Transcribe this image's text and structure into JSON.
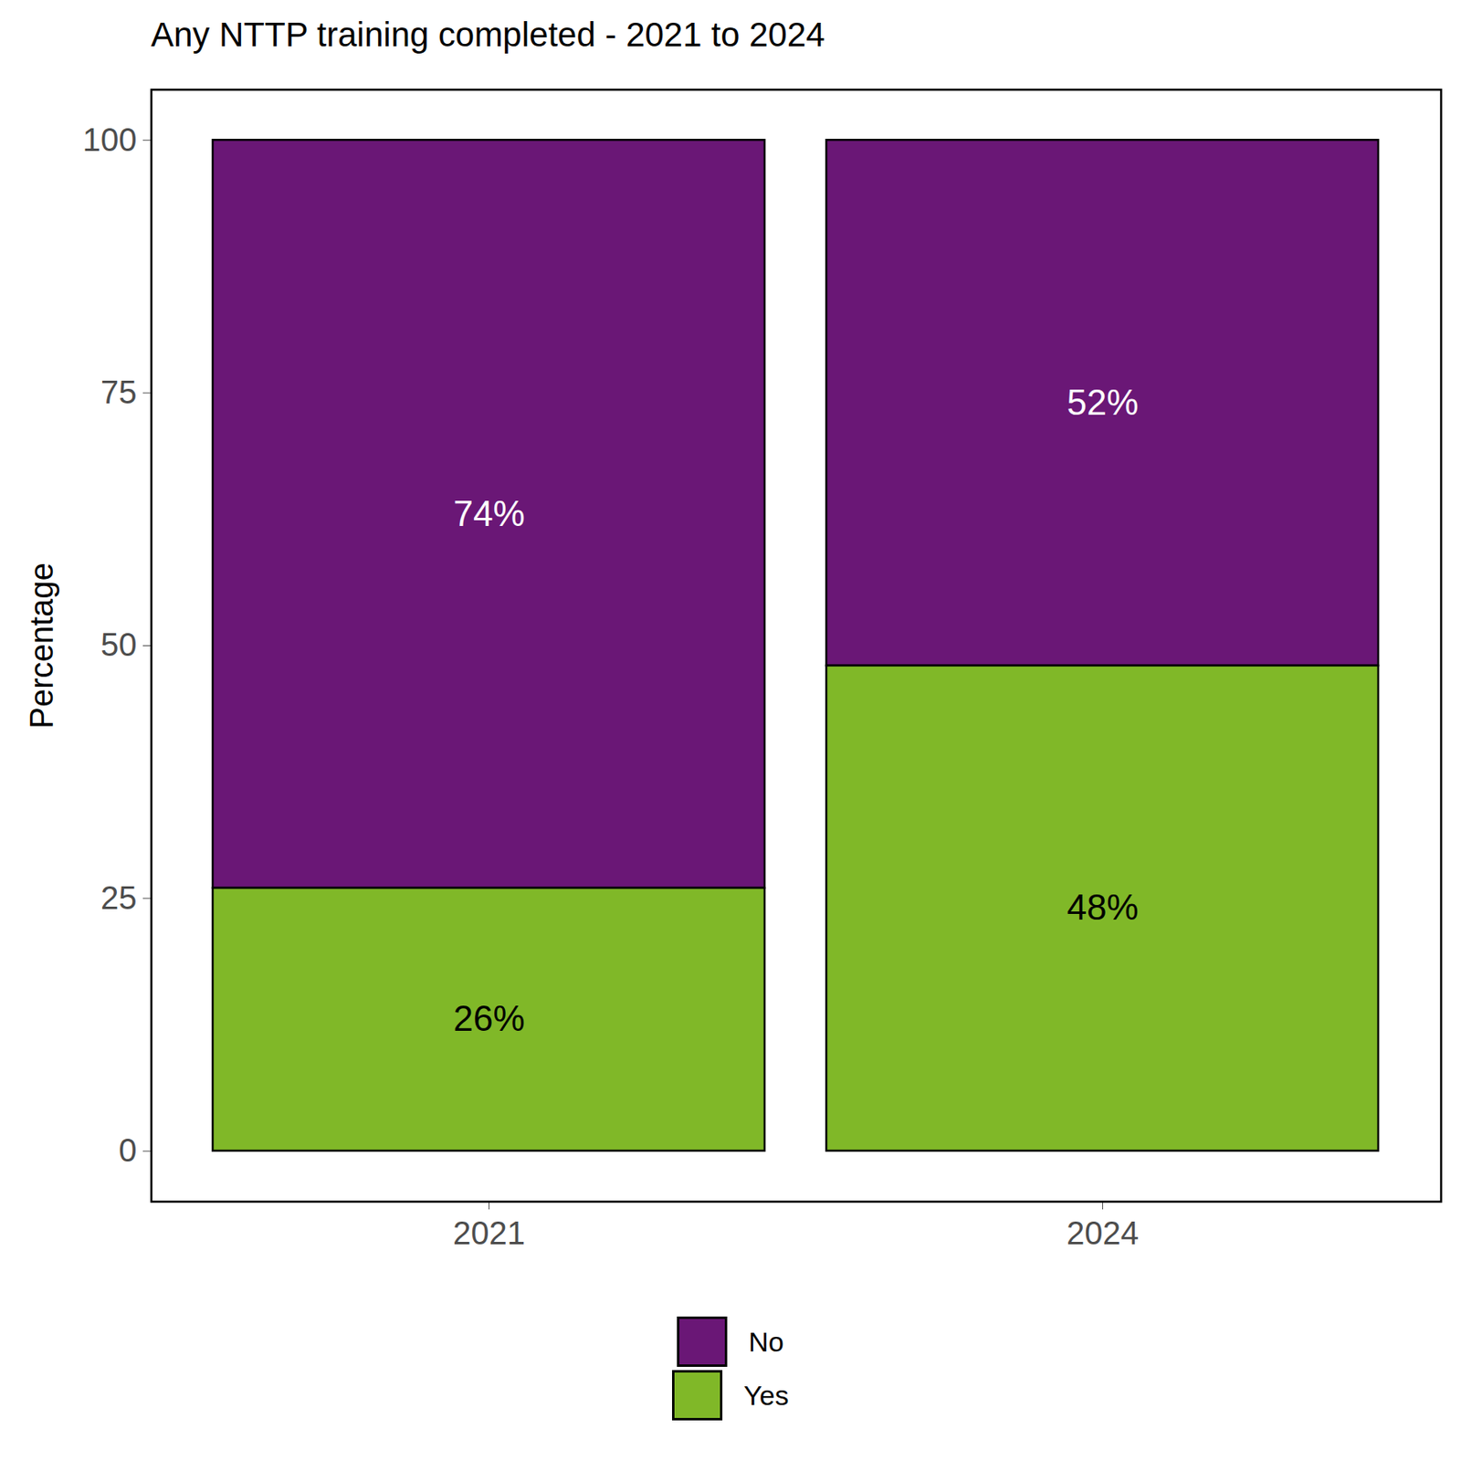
{
  "chart_data": {
    "type": "bar",
    "title": "Any NTTP training completed - 2021 to 2024",
    "y_label": "Percentage",
    "categories": [
      "2021",
      "2024"
    ],
    "series": [
      {
        "name": "No",
        "color": "#6a1776",
        "values": [
          74,
          52
        ],
        "value_labels": [
          "74%",
          "52%"
        ]
      },
      {
        "name": "Yes",
        "color": "#80b828",
        "values": [
          26,
          48
        ],
        "value_labels": [
          "26%",
          "48%"
        ]
      }
    ],
    "stacked": true,
    "data_labels": true,
    "legend": "bottom",
    "ylim": [
      -5,
      105
    ],
    "yticks": [
      0,
      25,
      50,
      75,
      100
    ],
    "grid": false
  }
}
